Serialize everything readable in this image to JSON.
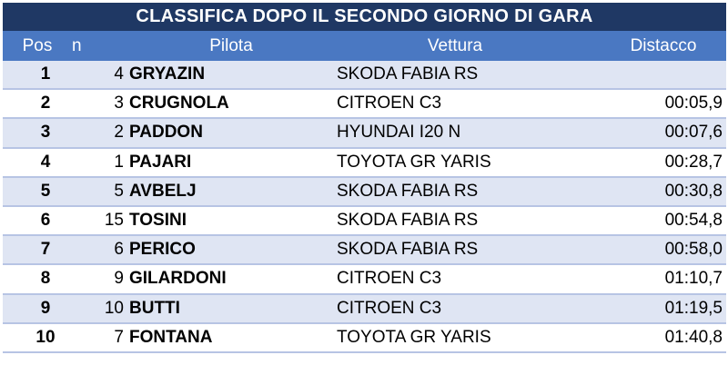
{
  "title": "CLASSIFICA DOPO IL SECONDO GIORNO DI GARA",
  "headers": {
    "pos": "Pos",
    "n": "n",
    "pilota": "Pilota",
    "vettura": "Vettura",
    "distacco": "Distacco"
  },
  "rows": [
    {
      "pos": "1",
      "n": "4",
      "pilota": "GRYAZIN",
      "vettura": "SKODA FABIA RS",
      "distacco": ""
    },
    {
      "pos": "2",
      "n": "3",
      "pilota": "CRUGNOLA",
      "vettura": "CITROEN C3",
      "distacco": "00:05,9"
    },
    {
      "pos": "3",
      "n": "2",
      "pilota": "PADDON",
      "vettura": "HYUNDAI I20 N",
      "distacco": "00:07,6"
    },
    {
      "pos": "4",
      "n": "1",
      "pilota": "PAJARI",
      "vettura": "TOYOTA GR YARIS",
      "distacco": "00:28,7"
    },
    {
      "pos": "5",
      "n": "5",
      "pilota": "AVBELJ",
      "vettura": "SKODA FABIA RS",
      "distacco": "00:30,8"
    },
    {
      "pos": "6",
      "n": "15",
      "pilota": "TOSINI",
      "vettura": "SKODA FABIA RS",
      "distacco": "00:54,8"
    },
    {
      "pos": "7",
      "n": "6",
      "pilota": "PERICO",
      "vettura": "SKODA FABIA RS",
      "distacco": "00:58,0"
    },
    {
      "pos": "8",
      "n": "9",
      "pilota": "GILARDONI",
      "vettura": "CITROEN C3",
      "distacco": "01:10,7"
    },
    {
      "pos": "9",
      "n": "10",
      "pilota": "BUTTI",
      "vettura": "CITROEN C3",
      "distacco": "01:19,5"
    },
    {
      "pos": "10",
      "n": "7",
      "pilota": "FONTANA",
      "vettura": "TOYOTA GR YARIS",
      "distacco": "01:40,8"
    }
  ],
  "colors": {
    "title_bg": "#1f3864",
    "header_bg": "#4a78c2",
    "row_shade": "#dfe5f3",
    "row_border": "#b7c4e4"
  }
}
